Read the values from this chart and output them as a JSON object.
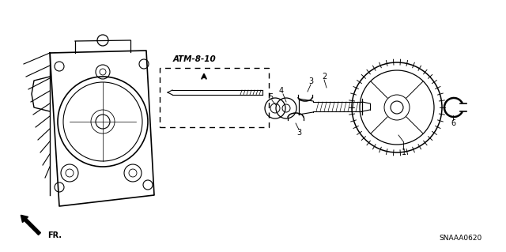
{
  "bg_color": "#ffffff",
  "line_color": "#000000",
  "ref_label": "ATM-8-10",
  "direction_label": "FR.",
  "diagram_code": "SNAAA0620",
  "figsize": [
    6.4,
    3.19
  ],
  "dpi": 100
}
